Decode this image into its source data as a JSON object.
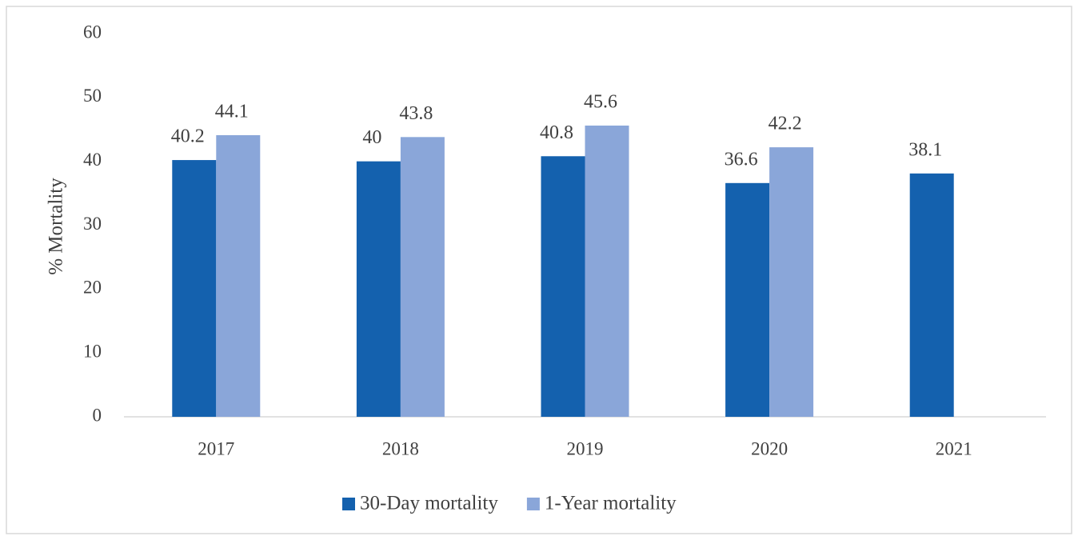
{
  "chart_data": {
    "type": "bar",
    "y_label": "% Mortality",
    "categories": [
      "2017",
      "2018",
      "2019",
      "2020",
      "2021"
    ],
    "series": [
      {
        "name": "30-Day mortality",
        "color": "#1461ae",
        "values": [
          40.2,
          40,
          40.8,
          36.6,
          38.1
        ]
      },
      {
        "name": "1-Year mortality",
        "color": "#8aa6d9",
        "values": [
          44.1,
          43.8,
          45.6,
          42.2,
          null
        ]
      }
    ],
    "ylim": [
      0,
      60
    ],
    "yticks": [
      0,
      10,
      20,
      30,
      40,
      50,
      60
    ],
    "grid": false,
    "legend": "bottom"
  }
}
